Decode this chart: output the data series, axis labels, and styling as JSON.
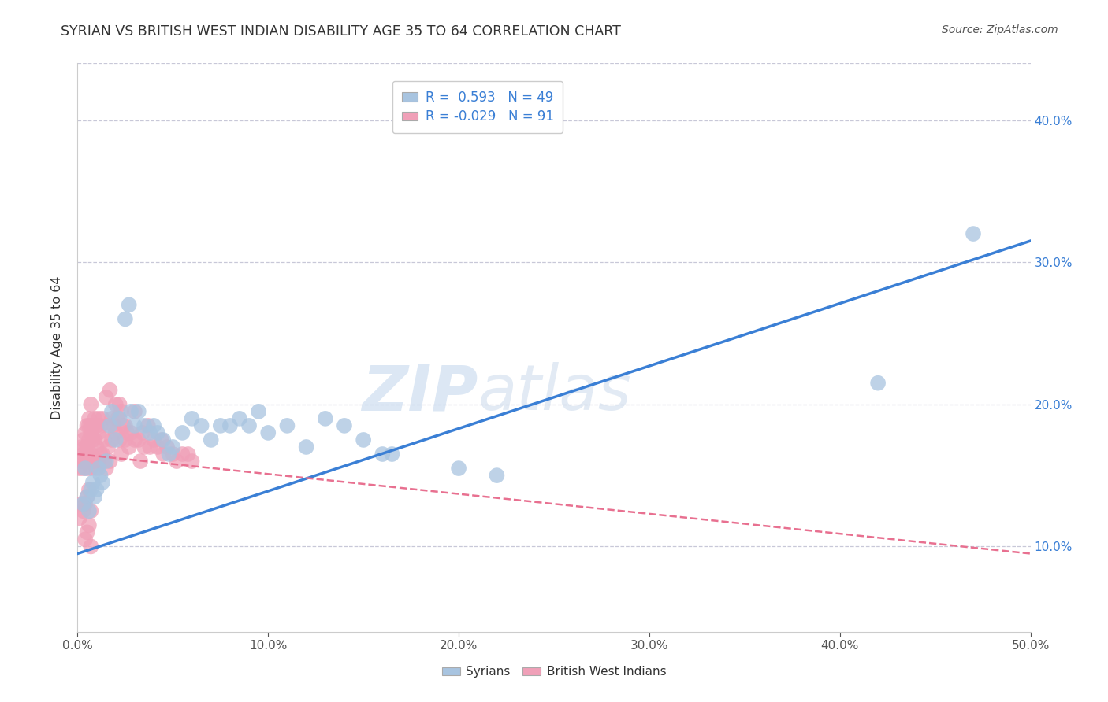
{
  "title": "SYRIAN VS BRITISH WEST INDIAN DISABILITY AGE 35 TO 64 CORRELATION CHART",
  "source": "Source: ZipAtlas.com",
  "ylabel": "Disability Age 35 to 64",
  "xlim": [
    0.0,
    0.5
  ],
  "ylim": [
    0.04,
    0.44
  ],
  "xticks": [
    0.0,
    0.1,
    0.2,
    0.3,
    0.4,
    0.5
  ],
  "yticks": [
    0.1,
    0.2,
    0.3,
    0.4
  ],
  "legend_r_syrian": " 0.593",
  "legend_n_syrian": "49",
  "legend_r_bwi": "-0.029",
  "legend_n_bwi": "91",
  "syrian_color": "#a8c4e0",
  "bwi_color": "#f0a0b8",
  "syrian_line_color": "#3a7fd5",
  "bwi_line_color": "#e87090",
  "watermark_zip": "ZIP",
  "watermark_atlas": "atlas",
  "background_color": "#ffffff",
  "grid_color": "#c8c8d8",
  "syrian_points": [
    [
      0.003,
      0.13
    ],
    [
      0.004,
      0.155
    ],
    [
      0.005,
      0.135
    ],
    [
      0.006,
      0.125
    ],
    [
      0.007,
      0.14
    ],
    [
      0.008,
      0.145
    ],
    [
      0.009,
      0.135
    ],
    [
      0.01,
      0.14
    ],
    [
      0.011,
      0.155
    ],
    [
      0.012,
      0.15
    ],
    [
      0.013,
      0.145
    ],
    [
      0.015,
      0.16
    ],
    [
      0.017,
      0.185
    ],
    [
      0.018,
      0.195
    ],
    [
      0.02,
      0.175
    ],
    [
      0.022,
      0.19
    ],
    [
      0.025,
      0.26
    ],
    [
      0.027,
      0.27
    ],
    [
      0.028,
      0.195
    ],
    [
      0.03,
      0.185
    ],
    [
      0.032,
      0.195
    ],
    [
      0.035,
      0.185
    ],
    [
      0.038,
      0.18
    ],
    [
      0.04,
      0.185
    ],
    [
      0.042,
      0.18
    ],
    [
      0.045,
      0.175
    ],
    [
      0.048,
      0.165
    ],
    [
      0.05,
      0.17
    ],
    [
      0.055,
      0.18
    ],
    [
      0.06,
      0.19
    ],
    [
      0.065,
      0.185
    ],
    [
      0.07,
      0.175
    ],
    [
      0.075,
      0.185
    ],
    [
      0.08,
      0.185
    ],
    [
      0.085,
      0.19
    ],
    [
      0.09,
      0.185
    ],
    [
      0.095,
      0.195
    ],
    [
      0.1,
      0.18
    ],
    [
      0.11,
      0.185
    ],
    [
      0.12,
      0.17
    ],
    [
      0.13,
      0.19
    ],
    [
      0.14,
      0.185
    ],
    [
      0.15,
      0.175
    ],
    [
      0.16,
      0.165
    ],
    [
      0.165,
      0.165
    ],
    [
      0.2,
      0.155
    ],
    [
      0.22,
      0.15
    ],
    [
      0.42,
      0.215
    ],
    [
      0.47,
      0.32
    ]
  ],
  "bwi_points": [
    [
      0.001,
      0.155
    ],
    [
      0.002,
      0.16
    ],
    [
      0.002,
      0.17
    ],
    [
      0.003,
      0.165
    ],
    [
      0.003,
      0.175
    ],
    [
      0.003,
      0.155
    ],
    [
      0.004,
      0.16
    ],
    [
      0.004,
      0.17
    ],
    [
      0.004,
      0.18
    ],
    [
      0.005,
      0.155
    ],
    [
      0.005,
      0.17
    ],
    [
      0.005,
      0.185
    ],
    [
      0.005,
      0.165
    ],
    [
      0.006,
      0.16
    ],
    [
      0.006,
      0.175
    ],
    [
      0.006,
      0.185
    ],
    [
      0.006,
      0.19
    ],
    [
      0.007,
      0.165
    ],
    [
      0.007,
      0.18
    ],
    [
      0.007,
      0.185
    ],
    [
      0.007,
      0.2
    ],
    [
      0.007,
      0.155
    ],
    [
      0.008,
      0.16
    ],
    [
      0.008,
      0.175
    ],
    [
      0.008,
      0.185
    ],
    [
      0.009,
      0.16
    ],
    [
      0.009,
      0.175
    ],
    [
      0.009,
      0.19
    ],
    [
      0.01,
      0.155
    ],
    [
      0.01,
      0.17
    ],
    [
      0.01,
      0.185
    ],
    [
      0.011,
      0.16
    ],
    [
      0.011,
      0.18
    ],
    [
      0.011,
      0.19
    ],
    [
      0.012,
      0.165
    ],
    [
      0.012,
      0.185
    ],
    [
      0.013,
      0.165
    ],
    [
      0.013,
      0.19
    ],
    [
      0.014,
      0.16
    ],
    [
      0.014,
      0.175
    ],
    [
      0.015,
      0.155
    ],
    [
      0.015,
      0.205
    ],
    [
      0.016,
      0.17
    ],
    [
      0.016,
      0.185
    ],
    [
      0.017,
      0.16
    ],
    [
      0.017,
      0.21
    ],
    [
      0.018,
      0.175
    ],
    [
      0.018,
      0.19
    ],
    [
      0.019,
      0.185
    ],
    [
      0.02,
      0.18
    ],
    [
      0.02,
      0.2
    ],
    [
      0.021,
      0.19
    ],
    [
      0.022,
      0.175
    ],
    [
      0.022,
      0.2
    ],
    [
      0.023,
      0.165
    ],
    [
      0.023,
      0.195
    ],
    [
      0.024,
      0.185
    ],
    [
      0.025,
      0.175
    ],
    [
      0.025,
      0.185
    ],
    [
      0.026,
      0.18
    ],
    [
      0.027,
      0.17
    ],
    [
      0.028,
      0.18
    ],
    [
      0.03,
      0.175
    ],
    [
      0.03,
      0.195
    ],
    [
      0.032,
      0.175
    ],
    [
      0.033,
      0.16
    ],
    [
      0.034,
      0.18
    ],
    [
      0.035,
      0.17
    ],
    [
      0.037,
      0.185
    ],
    [
      0.038,
      0.17
    ],
    [
      0.04,
      0.175
    ],
    [
      0.042,
      0.17
    ],
    [
      0.044,
      0.175
    ],
    [
      0.045,
      0.165
    ],
    [
      0.047,
      0.17
    ],
    [
      0.05,
      0.165
    ],
    [
      0.052,
      0.16
    ],
    [
      0.055,
      0.165
    ],
    [
      0.058,
      0.165
    ],
    [
      0.06,
      0.16
    ],
    [
      0.001,
      0.12
    ],
    [
      0.002,
      0.13
    ],
    [
      0.003,
      0.125
    ],
    [
      0.004,
      0.105
    ],
    [
      0.004,
      0.13
    ],
    [
      0.005,
      0.11
    ],
    [
      0.005,
      0.135
    ],
    [
      0.006,
      0.115
    ],
    [
      0.006,
      0.14
    ],
    [
      0.007,
      0.125
    ],
    [
      0.007,
      0.1
    ]
  ],
  "syrian_line": [
    [
      0.0,
      0.095
    ],
    [
      0.5,
      0.315
    ]
  ],
  "bwi_line": [
    [
      0.0,
      0.165
    ],
    [
      0.5,
      0.095
    ]
  ]
}
